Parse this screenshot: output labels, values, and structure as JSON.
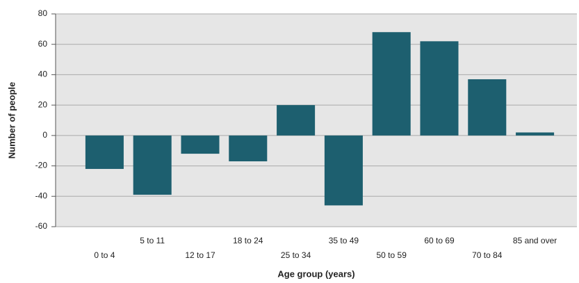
{
  "chart_data": {
    "type": "bar",
    "x_label": "Age group (years)",
    "y_label": "Number of people",
    "categories": [
      "0 to 4",
      "5 to 11",
      "12 to 17",
      "18 to 24",
      "25 to 34",
      "35 to 49",
      "50 to 59",
      "60 to 69",
      "70 to 84",
      "85 and over"
    ],
    "values": [
      -22,
      -39,
      -12,
      -17,
      20,
      -46,
      68,
      62,
      37,
      2
    ],
    "color": "#1d5f6f",
    "ylim": [
      -60,
      80
    ],
    "yticks": [
      -60,
      -40,
      -20,
      0,
      20,
      40,
      60,
      80
    ],
    "grid": true
  }
}
